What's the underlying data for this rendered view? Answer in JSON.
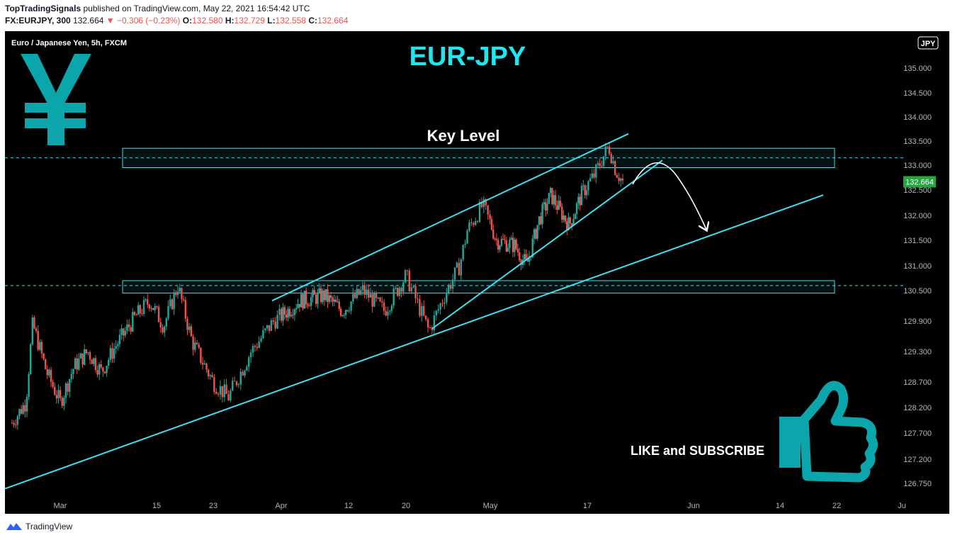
{
  "header": {
    "author": "TopTradingSignals",
    "published_text": "published on TradingView.com, May 22, 2021 16:54:42 UTC",
    "symbol": "FX:EURJPY, 300",
    "last": "132.664",
    "change": "−0.306 (−0.23%)",
    "open_label": "O:",
    "open": "132.580",
    "high_label": "H:",
    "high": "132.729",
    "low_label": "L:",
    "low": "132.558",
    "close_label": "C:",
    "close": "132.664"
  },
  "footer": {
    "brand": "TradingView"
  },
  "colors": {
    "background": "#000000",
    "bull": "#26a69a",
    "bear": "#ef5350",
    "annotation": "#3de0ee",
    "title": "#22e6ee",
    "price_tag": "#26a541",
    "icon": "#0ba6ab"
  },
  "chart_data": {
    "type": "candlestick",
    "instrument_label": "Euro / Japanese Yen, 5h, FXCM",
    "currency_badge": "JPY",
    "title": "EUR-JPY",
    "annotations": {
      "key_level": "Key Level",
      "cta": "LIKE and SUBSCRIBE"
    },
    "current_price_label": "132.664",
    "y_ticks": [
      "135.000",
      "134.500",
      "134.000",
      "133.500",
      "133.000",
      "132.500",
      "132.000",
      "131.500",
      "131.000",
      "130.500",
      "129.900",
      "129.300",
      "128.700",
      "128.200",
      "127.700",
      "127.200",
      "126.750"
    ],
    "x_ticks": [
      "Mar",
      "15",
      "23",
      "Apr",
      "12",
      "20",
      "May",
      "17",
      "Jun",
      "14",
      "22",
      "Ju"
    ],
    "ylim": [
      126.55,
      135.3
    ],
    "zones": [
      {
        "name": "upper-key-zone",
        "top": 133.35,
        "bottom": 132.95,
        "dashed_level": 133.15
      },
      {
        "name": "lower-key-zone",
        "top": 130.7,
        "bottom": 130.45,
        "dashed_level": 130.6
      }
    ],
    "price_path": [
      {
        "x": "Feb 22",
        "price": 127.9
      },
      {
        "x": "Feb 24",
        "price": 128.3
      },
      {
        "x": "Feb 25",
        "price": 129.85
      },
      {
        "x": "Feb 27",
        "price": 128.9
      },
      {
        "x": "Mar 1",
        "price": 128.3
      },
      {
        "x": "Mar 3",
        "price": 129.0
      },
      {
        "x": "Mar 5",
        "price": 129.3
      },
      {
        "x": "Mar 7",
        "price": 128.9
      },
      {
        "x": "Mar 9",
        "price": 129.4
      },
      {
        "x": "Mar 12",
        "price": 130.0
      },
      {
        "x": "Mar 14",
        "price": 130.3
      },
      {
        "x": "Mar 16",
        "price": 129.8
      },
      {
        "x": "Mar 18",
        "price": 130.6
      },
      {
        "x": "Mar 20",
        "price": 129.5
      },
      {
        "x": "Mar 23",
        "price": 128.7
      },
      {
        "x": "Mar 25",
        "price": 128.4
      },
      {
        "x": "Mar 28",
        "price": 129.3
      },
      {
        "x": "Mar 31",
        "price": 129.9
      },
      {
        "x": "Apr 4",
        "price": 130.3
      },
      {
        "x": "Apr 8",
        "price": 130.4
      },
      {
        "x": "Apr 11",
        "price": 130.1
      },
      {
        "x": "Apr 14",
        "price": 130.5
      },
      {
        "x": "Apr 17",
        "price": 130.1
      },
      {
        "x": "Apr 20",
        "price": 130.8
      },
      {
        "x": "Apr 23",
        "price": 129.7
      },
      {
        "x": "Apr 25",
        "price": 130.4
      },
      {
        "x": "Apr 27",
        "price": 131.0
      },
      {
        "x": "Apr 28",
        "price": 131.7
      },
      {
        "x": "Apr 30",
        "price": 132.2
      },
      {
        "x": "May 2",
        "price": 131.5
      },
      {
        "x": "May 5",
        "price": 131.4
      },
      {
        "x": "May 7",
        "price": 131.0
      },
      {
        "x": "May 9",
        "price": 131.9
      },
      {
        "x": "May 11",
        "price": 132.4
      },
      {
        "x": "May 14",
        "price": 131.8
      },
      {
        "x": "May 16",
        "price": 132.4
      },
      {
        "x": "May 18",
        "price": 132.8
      },
      {
        "x": "May 20",
        "price": 133.4
      },
      {
        "x": "May 21",
        "price": 132.9
      },
      {
        "x": "May 22",
        "price": 132.66
      }
    ]
  }
}
